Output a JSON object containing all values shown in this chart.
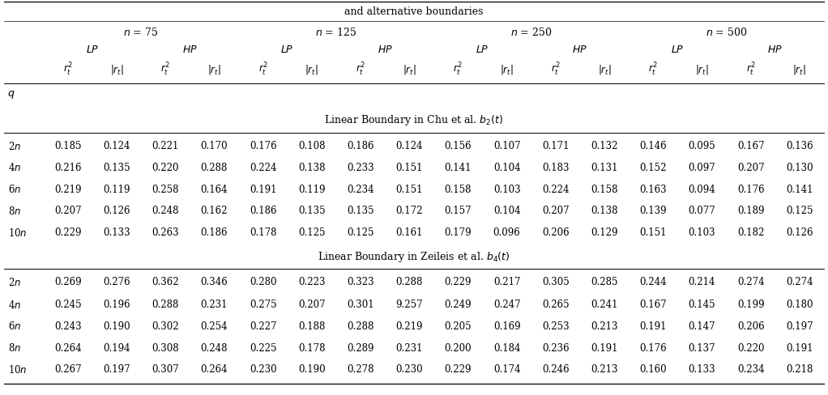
{
  "title_line": "and alternative boundaries",
  "col_groups": [
    "n = 75",
    "n = 125",
    "n = 250",
    "n = 500"
  ],
  "row_labels": [
    "2n",
    "4n",
    "6n",
    "8n",
    "10n"
  ],
  "section1_title": "Linear Boundary in Chu et al. $b_2(t)$",
  "section2_title": "Linear Boundary in Zeileis et al. $b_4(t)$",
  "section1_data": [
    [
      0.185,
      0.124,
      0.221,
      0.17,
      0.176,
      0.108,
      0.186,
      0.124,
      0.156,
      0.107,
      0.171,
      0.132,
      0.146,
      0.095,
      0.167,
      0.136
    ],
    [
      0.216,
      0.135,
      0.22,
      0.288,
      0.224,
      0.138,
      0.233,
      0.151,
      0.141,
      0.104,
      0.183,
      0.131,
      0.152,
      0.097,
      0.207,
      0.13
    ],
    [
      0.219,
      0.119,
      0.258,
      0.164,
      0.191,
      0.119,
      0.234,
      0.151,
      0.158,
      0.103,
      0.224,
      0.158,
      0.163,
      0.094,
      0.176,
      0.141
    ],
    [
      0.207,
      0.126,
      0.248,
      0.162,
      0.186,
      0.135,
      0.135,
      0.172,
      0.157,
      0.104,
      0.207,
      0.138,
      0.139,
      0.077,
      0.189,
      0.125
    ],
    [
      0.229,
      0.133,
      0.263,
      0.186,
      0.178,
      0.125,
      0.125,
      0.161,
      0.179,
      0.096,
      0.206,
      0.129,
      0.151,
      0.103,
      0.182,
      0.126
    ]
  ],
  "section2_data": [
    [
      0.269,
      0.276,
      0.362,
      0.346,
      0.28,
      0.223,
      0.323,
      0.288,
      0.229,
      0.217,
      0.305,
      0.285,
      0.244,
      0.214,
      0.274,
      0.274
    ],
    [
      0.245,
      0.196,
      0.288,
      0.231,
      0.275,
      0.207,
      0.301,
      9.257,
      0.249,
      0.247,
      0.265,
      0.241,
      0.167,
      0.145,
      0.199,
      0.18
    ],
    [
      0.243,
      0.19,
      0.302,
      0.254,
      0.227,
      0.188,
      0.288,
      0.219,
      0.205,
      0.169,
      0.253,
      0.213,
      0.191,
      0.147,
      0.206,
      0.197
    ],
    [
      0.264,
      0.194,
      0.308,
      0.248,
      0.225,
      0.178,
      0.289,
      0.231,
      0.2,
      0.184,
      0.236,
      0.191,
      0.176,
      0.137,
      0.22,
      0.191
    ],
    [
      0.267,
      0.197,
      0.307,
      0.264,
      0.23,
      0.19,
      0.278,
      0.23,
      0.229,
      0.174,
      0.246,
      0.213,
      0.16,
      0.133,
      0.234,
      0.218
    ]
  ],
  "bg_color": "white",
  "text_color": "black",
  "line_color": "black",
  "figsize": [
    10.22,
    4.88
  ],
  "dpi": 100
}
